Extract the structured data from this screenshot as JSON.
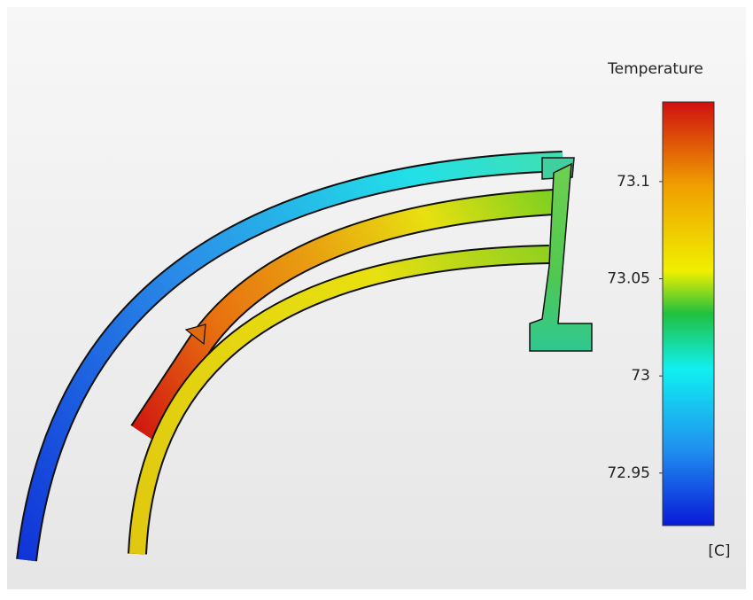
{
  "legend": {
    "title": "Temperature",
    "ticks": [
      73.1,
      73.05,
      73,
      72.95
    ],
    "range": [
      72.923,
      73.141
    ],
    "unit": "[C]"
  }
}
